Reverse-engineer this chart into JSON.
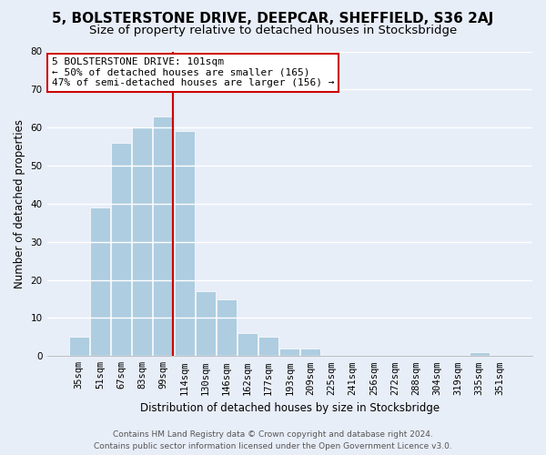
{
  "title": "5, BOLSTERSTONE DRIVE, DEEPCAR, SHEFFIELD, S36 2AJ",
  "subtitle": "Size of property relative to detached houses in Stocksbridge",
  "xlabel": "Distribution of detached houses by size in Stocksbridge",
  "ylabel": "Number of detached properties",
  "bin_labels": [
    "35sqm",
    "51sqm",
    "67sqm",
    "83sqm",
    "99sqm",
    "114sqm",
    "130sqm",
    "146sqm",
    "162sqm",
    "177sqm",
    "193sqm",
    "209sqm",
    "225sqm",
    "241sqm",
    "256sqm",
    "272sqm",
    "288sqm",
    "304sqm",
    "319sqm",
    "335sqm",
    "351sqm"
  ],
  "bar_values": [
    5,
    39,
    56,
    60,
    63,
    59,
    17,
    15,
    6,
    5,
    2,
    2,
    0,
    0,
    0,
    0,
    0,
    0,
    0,
    1,
    0
  ],
  "bar_color": "#aecde0",
  "bar_edge_color": "#ffffff",
  "highlight_line_color": "#cc0000",
  "ylim": [
    0,
    80
  ],
  "yticks": [
    0,
    10,
    20,
    30,
    40,
    50,
    60,
    70,
    80
  ],
  "annotation_line1": "5 BOLSTERSTONE DRIVE: 101sqm",
  "annotation_line2": "← 50% of detached houses are smaller (165)",
  "annotation_line3": "47% of semi-detached houses are larger (156) →",
  "annotation_box_color": "#ffffff",
  "annotation_box_edge": "#cc0000",
  "footer_line1": "Contains HM Land Registry data © Crown copyright and database right 2024.",
  "footer_line2": "Contains public sector information licensed under the Open Government Licence v3.0.",
  "background_color": "#e8eef8",
  "grid_color": "#ffffff",
  "title_fontsize": 11,
  "subtitle_fontsize": 9.5,
  "axis_label_fontsize": 8.5,
  "tick_fontsize": 7.5,
  "annotation_fontsize": 8,
  "footer_fontsize": 6.5
}
